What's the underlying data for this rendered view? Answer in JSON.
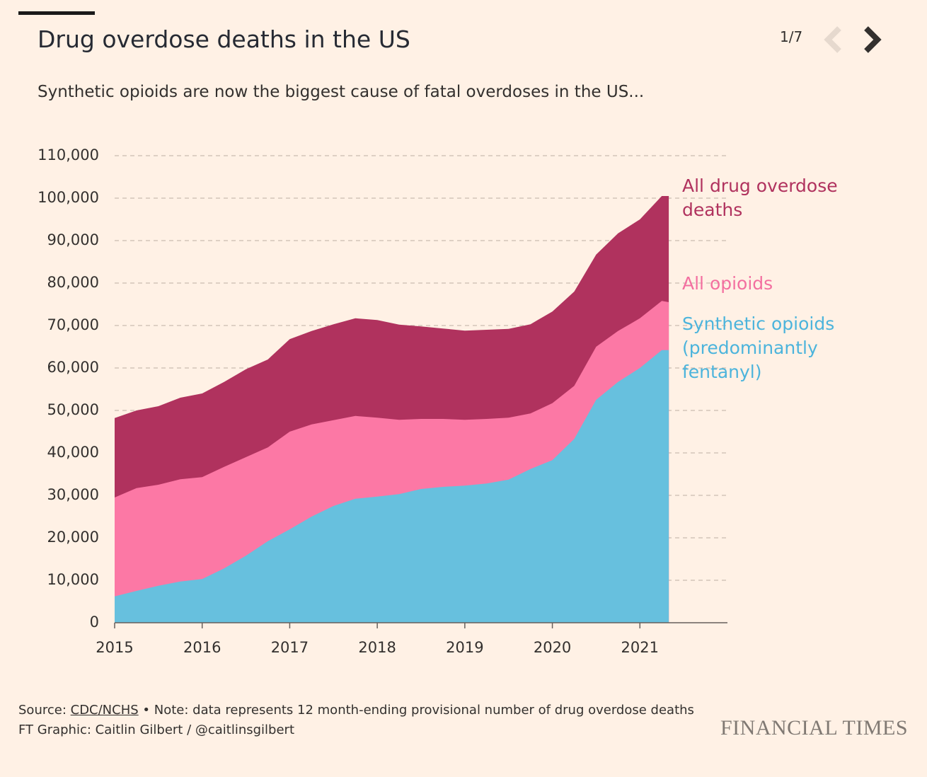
{
  "chart_data": {
    "type": "area",
    "title": "Drug overdose deaths in the US",
    "subtitle": "Synthetic opioids are now the biggest cause of fatal overdoses in the US...",
    "pager": "1/7",
    "x": [
      2015,
      2015.25,
      2015.5,
      2015.75,
      2016,
      2016.25,
      2016.5,
      2016.75,
      2017,
      2017.25,
      2017.5,
      2017.75,
      2018,
      2018.25,
      2018.5,
      2018.75,
      2019,
      2019.25,
      2019.5,
      2019.75,
      2020,
      2020.25,
      2020.5,
      2020.75,
      2021,
      2021.25,
      2021.33
    ],
    "series": [
      {
        "name": "All drug overdose deaths",
        "color": "#b0325e",
        "label_color": "#b0325e",
        "values": [
          48200,
          50000,
          51000,
          53000,
          54000,
          56700,
          59700,
          62000,
          66800,
          68700,
          70300,
          71700,
          71300,
          70200,
          69800,
          69300,
          68800,
          69000,
          69200,
          70300,
          73300,
          78000,
          86700,
          91700,
          95000,
          100500,
          100500
        ]
      },
      {
        "name": "All opioids",
        "color": "#fc78a5",
        "label_color": "#f36fa0",
        "values": [
          29500,
          31700,
          32500,
          33800,
          34300,
          36700,
          39000,
          41300,
          45000,
          46700,
          47700,
          48700,
          48300,
          47800,
          48000,
          48000,
          47800,
          48000,
          48300,
          49300,
          51700,
          55800,
          65000,
          68700,
          71700,
          75800,
          75500
        ]
      },
      {
        "name": "Synthetic opioids (predominantly fentanyl)",
        "color": "#67c0de",
        "label_color": "#4cb4dc",
        "values": [
          6200,
          7500,
          8700,
          9700,
          10300,
          12800,
          15800,
          19200,
          22000,
          25000,
          27500,
          29200,
          29700,
          30300,
          31500,
          32000,
          32300,
          32800,
          33700,
          36200,
          38300,
          43300,
          52500,
          56700,
          60000,
          64200,
          64200
        ]
      }
    ],
    "xlim": [
      2015,
      2022
    ],
    "xticks": [
      2015,
      2016,
      2017,
      2018,
      2019,
      2020,
      2021
    ],
    "ylim": [
      0,
      110000
    ],
    "yticks": [
      0,
      {
        "value": 10000,
        "label": "10,000"
      },
      {
        "value": 20000,
        "label": "20,000"
      },
      {
        "value": 30000,
        "label": "30,000"
      },
      {
        "value": 40000,
        "label": "40,000"
      },
      {
        "value": 50000,
        "label": "50,000"
      },
      {
        "value": 60000,
        "label": "60,000"
      },
      {
        "value": 70000,
        "label": "70,000"
      },
      {
        "value": 80000,
        "label": "80,000"
      },
      {
        "value": 90000,
        "label": "90,000"
      },
      {
        "value": 100000,
        "label": "100,000"
      },
      {
        "value": 110000,
        "label": "110,000"
      }
    ],
    "grid": true,
    "source_label": "Source:",
    "source_link": "CDC/NCHS",
    "note": "• Note: data represents 12 month-ending provisional number of drug overdose deaths",
    "credit": "FT Graphic: Caitlin Gilbert / @caitlinsgilbert",
    "brand": "FINANCIAL TIMES"
  }
}
